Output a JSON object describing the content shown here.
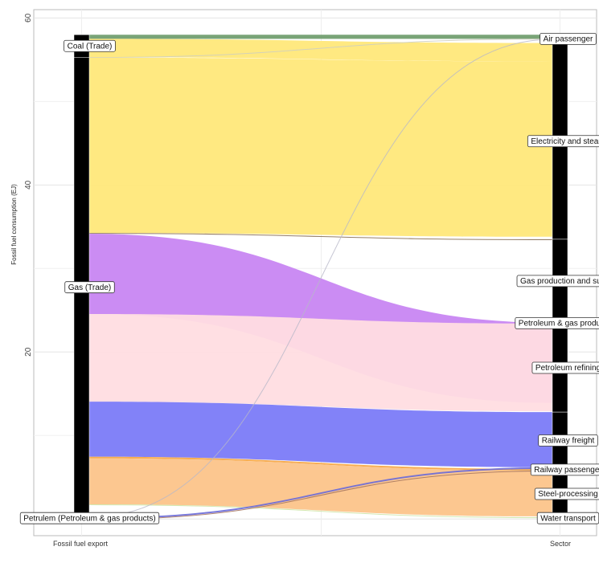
{
  "chart_data": {
    "type": "sankey",
    "ylabel": "Fossil fuel consumption (EJ)",
    "axis_categories": [
      "Fossil fuel export",
      "Sector"
    ],
    "ylim": [
      -2,
      61
    ],
    "yticks": [
      20,
      40,
      60
    ],
    "grid": true,
    "left_nodes": [
      {
        "name": "Coal (Trade)",
        "start": 55.3,
        "end": 58.0
      },
      {
        "name": "Gas (Trade)",
        "start": 0.2,
        "end": 55.3
      },
      {
        "name": "Petrulem (Petroleum & gas products)",
        "start": 0.0,
        "end": 0.2
      }
    ],
    "right_nodes": [
      {
        "name": "Air passenger",
        "start": 57.0,
        "end": 58.0
      },
      {
        "name": "Electricity and steam",
        "start": 33.5,
        "end": 57.0
      },
      {
        "name": "Gas production and supply",
        "start": 23.5,
        "end": 33.5
      },
      {
        "name": "Petroleum & gas production",
        "start": 23.4,
        "end": 23.5
      },
      {
        "name": "Petroleum refining",
        "start": 12.8,
        "end": 23.4
      },
      {
        "name": "Railway freight",
        "start": 6.0,
        "end": 12.8
      },
      {
        "name": "Railway passenger",
        "start": 5.8,
        "end": 6.0
      },
      {
        "name": "Steel-processing",
        "start": 0.2,
        "end": 5.8
      },
      {
        "name": "Water transport",
        "start": 0.0,
        "end": 0.2
      }
    ],
    "flows": [
      {
        "source": "Coal (Trade)",
        "target": "Air passenger",
        "value": 0.5,
        "color": "#6a9a68",
        "opacity": 0.9
      },
      {
        "source": "Coal (Trade)",
        "target": "Electricity and steam",
        "value": 2.2,
        "color": "#ffe87a",
        "opacity": 0.95
      },
      {
        "source": "Gas (Trade)",
        "target": "Air passenger",
        "value": 0.05,
        "color": "#cfcfbf",
        "opacity": 0.9
      },
      {
        "source": "Gas (Trade)",
        "target": "Electricity and steam",
        "value": 21.0,
        "color": "#ffe87a",
        "opacity": 0.95
      },
      {
        "source": "Gas (Trade)",
        "target": "Gas production and supply",
        "value": 0.1,
        "color": "#8a7055",
        "opacity": 0.9
      },
      {
        "source": "Gas (Trade)",
        "target": "Petroleum & gas production",
        "value": 9.6,
        "color": "#c886f2",
        "opacity": 0.95
      },
      {
        "source": "Gas (Trade)",
        "target": "Petroleum refining",
        "value": 10.5,
        "color": "#ffdde2",
        "opacity": 0.95
      },
      {
        "source": "Gas (Trade)",
        "target": "Railway freight",
        "value": 6.6,
        "color": "#7b7bf8",
        "opacity": 0.95
      },
      {
        "source": "Gas (Trade)",
        "target": "Railway passenger",
        "value": 0.2,
        "color": "#f5a94a",
        "opacity": 0.95
      },
      {
        "source": "Gas (Trade)",
        "target": "Steel-processing",
        "value": 5.5,
        "color": "#fcc48a",
        "opacity": 0.95
      },
      {
        "source": "Gas (Trade)",
        "target": "Water transport",
        "value": 0.1,
        "color": "#cfe6a8",
        "opacity": 0.9
      },
      {
        "source": "Petrulem (Petroleum & gas products)",
        "target": "Air passenger",
        "value": 0.02,
        "color": "#b8b8c8",
        "opacity": 0.8
      },
      {
        "source": "Petrulem (Petroleum & gas products)",
        "target": "Railway freight",
        "value": 0.2,
        "color": "#6a6ad8",
        "opacity": 0.9
      },
      {
        "source": "Petrulem (Petroleum & gas products)",
        "target": "Railway passenger",
        "value": 0.1,
        "color": "#a87860",
        "opacity": 0.9
      }
    ]
  }
}
